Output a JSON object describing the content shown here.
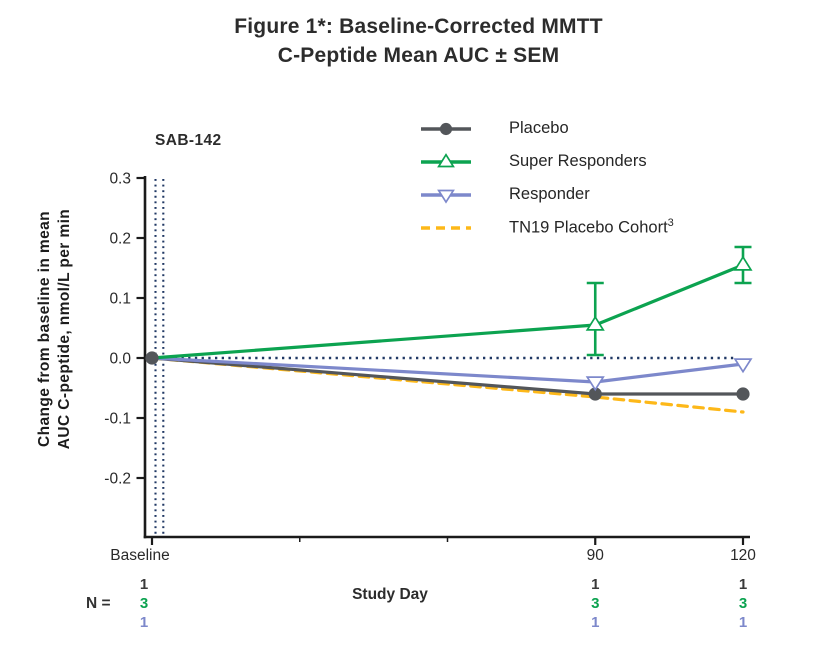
{
  "title": {
    "line1": "Figure 1*: Baseline-Corrected MMTT",
    "line2": "C-Peptide Mean AUC ± SEM"
  },
  "annotation": {
    "text": "SAB-142"
  },
  "axes": {
    "y_label_line1": "Change from baseline in mean",
    "y_label_line2": "AUC C-peptide, nmol/L per min",
    "x_label": "Study Day",
    "y_tick_labels": [
      "0.3",
      "0.2",
      "0.1",
      "0.0",
      "-0.1",
      "-0.2"
    ],
    "x_ticks": [
      {
        "label": "Baseline",
        "day": 0
      },
      {
        "label": "90",
        "day": 90
      },
      {
        "label": "120",
        "day": 120
      }
    ],
    "x_minor_tick_days": [
      30,
      60
    ],
    "ylim": [
      -0.3,
      0.3
    ]
  },
  "chart_data": {
    "type": "line",
    "title": "Figure 1*: Baseline-Corrected MMTT C-Peptide Mean AUC ± SEM",
    "xlabel": "Study Day",
    "ylabel": "Change from baseline in mean AUC C-peptide, nmol/L per min",
    "x_days": [
      0,
      90,
      120
    ],
    "x_tick_labels": [
      "Baseline",
      "90",
      "120"
    ],
    "ylim": [
      -0.3,
      0.3
    ],
    "grid": false,
    "legend_position": "top-right",
    "reference_lines": {
      "horizontal_dotted_y": 0.0,
      "vertical_double_dotted_at_day": 0,
      "style": "navy-dotted"
    },
    "series": [
      {
        "name": "Placebo",
        "color": "#53565A",
        "line": "solid",
        "marker": "circle-filled",
        "values": [
          0.0,
          -0.06,
          -0.06
        ],
        "markers_at_days": [
          0,
          90,
          120
        ]
      },
      {
        "name": "Super Responders",
        "color": "#0CA350",
        "line": "solid",
        "marker": "triangle-up-open",
        "values": [
          0.0,
          0.055,
          0.155
        ],
        "markers_at_days": [
          90,
          120
        ],
        "error_bars": [
          {
            "day": 90,
            "low": 0.005,
            "high": 0.125
          },
          {
            "day": 120,
            "low": 0.125,
            "high": 0.185
          }
        ]
      },
      {
        "name": "Responder",
        "color": "#7D88CB",
        "line": "solid",
        "marker": "triangle-down-open",
        "values": [
          0.0,
          -0.04,
          -0.01
        ],
        "markers_at_days": [
          90,
          120
        ]
      },
      {
        "name": "TN19 Placebo Cohort",
        "name_superscript": "3",
        "color": "#FDB819",
        "line": "dashed",
        "marker": "none",
        "values": [
          0.0,
          -0.065,
          -0.09
        ],
        "markers_at_days": []
      }
    ]
  },
  "n_table": {
    "label": "N =",
    "row_colors": [
      "#3A3A3A",
      "#0CA350",
      "#7D88CB"
    ],
    "columns": [
      {
        "day": 0,
        "values": [
          "1",
          "3",
          "1"
        ]
      },
      {
        "day": 90,
        "values": [
          "1",
          "3",
          "1"
        ]
      },
      {
        "day": 120,
        "values": [
          "1",
          "3",
          "1"
        ]
      }
    ]
  },
  "colors": {
    "dotted_line": "#203864",
    "axis": "#1A1A1A",
    "tick_text": "#2A2A2A"
  }
}
